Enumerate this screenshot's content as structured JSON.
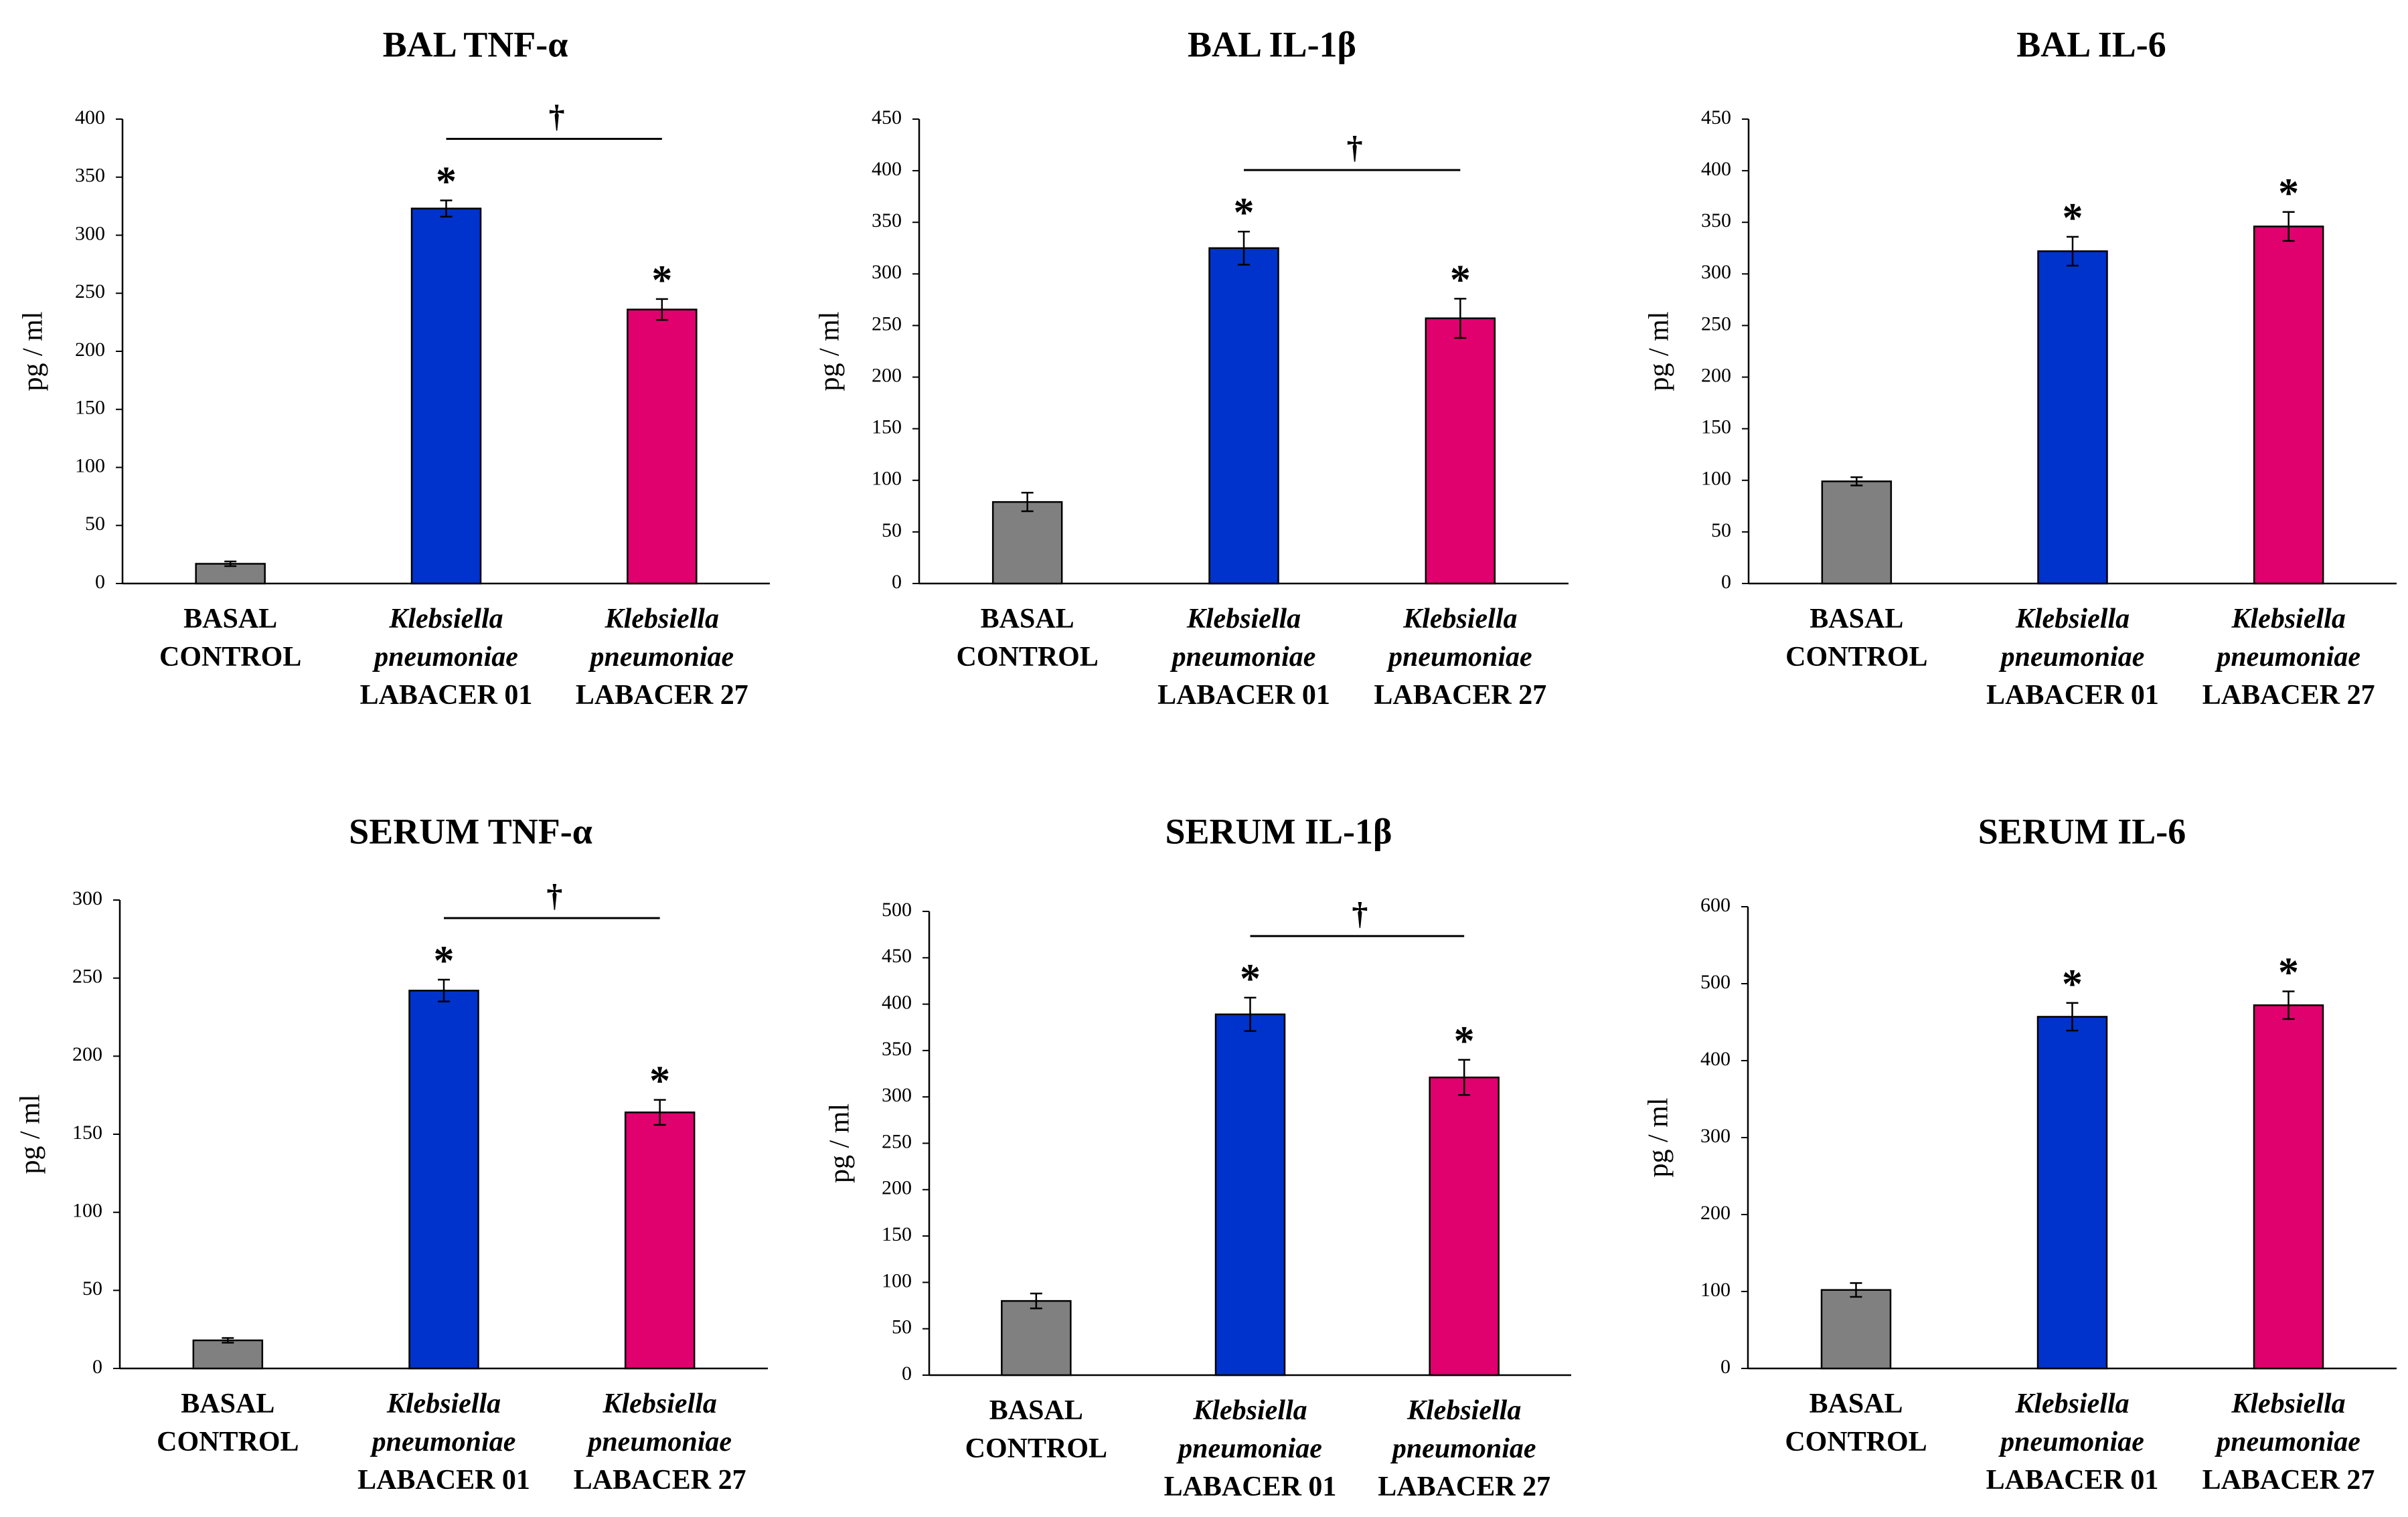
{
  "chart_data": [
    {
      "type": "bar",
      "title": "BAL TNF-α",
      "ylabel": "pg / ml",
      "ylim": [
        0,
        400
      ],
      "yticks": [
        "0",
        "50",
        "100",
        "150",
        "200",
        "250",
        "300",
        "350",
        "400"
      ],
      "categories": [
        {
          "lines": [
            "BASAL",
            "CONTROL"
          ],
          "italic": [
            false,
            false
          ]
        },
        {
          "lines": [
            "Klebsiella",
            "pneumoniae",
            "LABACER 01"
          ],
          "italic": [
            true,
            true,
            false
          ]
        },
        {
          "lines": [
            "Klebsiella",
            "pneumoniae",
            "LABACER 27"
          ],
          "italic": [
            true,
            true,
            false
          ]
        }
      ],
      "values": [
        17,
        323,
        236
      ],
      "errors": [
        2,
        7,
        9
      ],
      "colors": [
        "#808080",
        "#0033cc",
        "#e0006e"
      ],
      "significance": [
        "",
        "*",
        "*"
      ],
      "bracket": {
        "from": 1,
        "to": 2,
        "label": "†"
      }
    },
    {
      "type": "bar",
      "title": "BAL IL-1β",
      "ylabel": "pg / ml",
      "ylim": [
        0,
        450
      ],
      "yticks": [
        "0",
        "50",
        "100",
        "150",
        "200",
        "250",
        "300",
        "350",
        "400",
        "450"
      ],
      "categories": [
        {
          "lines": [
            "BASAL",
            "CONTROL"
          ],
          "italic": [
            false,
            false
          ]
        },
        {
          "lines": [
            "Klebsiella",
            "pneumoniae",
            "LABACER 01"
          ],
          "italic": [
            true,
            true,
            false
          ]
        },
        {
          "lines": [
            "Klebsiella",
            "pneumoniae",
            "LABACER 27"
          ],
          "italic": [
            true,
            true,
            false
          ]
        }
      ],
      "values": [
        79,
        325,
        257
      ],
      "errors": [
        9,
        16,
        19
      ],
      "colors": [
        "#808080",
        "#0033cc",
        "#e0006e"
      ],
      "significance": [
        "",
        "*",
        "*"
      ],
      "bracket": {
        "from": 1,
        "to": 2,
        "label": "†"
      }
    },
    {
      "type": "bar",
      "title": "BAL IL-6",
      "ylabel": "pg / ml",
      "ylim": [
        0,
        450
      ],
      "yticks": [
        "0",
        "50",
        "100",
        "150",
        "200",
        "250",
        "300",
        "350",
        "400",
        "450"
      ],
      "categories": [
        {
          "lines": [
            "BASAL",
            "CONTROL"
          ],
          "italic": [
            false,
            false
          ]
        },
        {
          "lines": [
            "Klebsiella",
            "pneumoniae",
            "LABACER 01"
          ],
          "italic": [
            true,
            true,
            false
          ]
        },
        {
          "lines": [
            "Klebsiella",
            "pneumoniae",
            "LABACER 27"
          ],
          "italic": [
            true,
            true,
            false
          ]
        }
      ],
      "values": [
        99,
        322,
        346
      ],
      "errors": [
        4,
        14,
        14
      ],
      "colors": [
        "#808080",
        "#0033cc",
        "#e0006e"
      ],
      "significance": [
        "",
        "*",
        "*"
      ],
      "bracket": null
    },
    {
      "type": "bar",
      "title": "SERUM TNF-α",
      "ylabel": "pg / ml",
      "ylim": [
        0,
        300
      ],
      "yticks": [
        "0",
        "50",
        "100",
        "150",
        "200",
        "250",
        "300"
      ],
      "categories": [
        {
          "lines": [
            "BASAL",
            "CONTROL"
          ],
          "italic": [
            false,
            false
          ]
        },
        {
          "lines": [
            "Klebsiella",
            "pneumoniae",
            "LABACER 01"
          ],
          "italic": [
            true,
            true,
            false
          ]
        },
        {
          "lines": [
            "Klebsiella",
            "pneumoniae",
            "LABACER 27"
          ],
          "italic": [
            true,
            true,
            false
          ]
        }
      ],
      "values": [
        18,
        242,
        164
      ],
      "errors": [
        1.5,
        7,
        8
      ],
      "colors": [
        "#808080",
        "#0033cc",
        "#e0006e"
      ],
      "significance": [
        "",
        "*",
        "*"
      ],
      "bracket": {
        "from": 1,
        "to": 2,
        "label": "†"
      }
    },
    {
      "type": "bar",
      "title": "SERUM IL-1β",
      "ylabel": "pg / ml",
      "ylim": [
        0,
        500
      ],
      "yticks": [
        "0",
        "50",
        "100",
        "150",
        "200",
        "250",
        "300",
        "350",
        "400",
        "450",
        "500"
      ],
      "categories": [
        {
          "lines": [
            "BASAL",
            "CONTROL"
          ],
          "italic": [
            false,
            false
          ]
        },
        {
          "lines": [
            "Klebsiella",
            "pneumoniae",
            "LABACER 01"
          ],
          "italic": [
            true,
            true,
            false
          ]
        },
        {
          "lines": [
            "Klebsiella",
            "pneumoniae",
            "LABACER 27"
          ],
          "italic": [
            true,
            true,
            false
          ]
        }
      ],
      "values": [
        80,
        389,
        321
      ],
      "errors": [
        8,
        18,
        19
      ],
      "colors": [
        "#808080",
        "#0033cc",
        "#e0006e"
      ],
      "significance": [
        "",
        "*",
        "*"
      ],
      "bracket": {
        "from": 1,
        "to": 2,
        "label": "†"
      }
    },
    {
      "type": "bar",
      "title": "SERUM IL-6",
      "ylabel": "pg / ml",
      "ylim": [
        0,
        600
      ],
      "yticks": [
        "0",
        "100",
        "200",
        "300",
        "400",
        "500",
        "600"
      ],
      "categories": [
        {
          "lines": [
            "BASAL",
            "CONTROL"
          ],
          "italic": [
            false,
            false
          ]
        },
        {
          "lines": [
            "Klebsiella",
            "pneumoniae",
            "LABACER 01"
          ],
          "italic": [
            true,
            true,
            false
          ]
        },
        {
          "lines": [
            "Klebsiella",
            "pneumoniae",
            "LABACER 27"
          ],
          "italic": [
            true,
            true,
            false
          ]
        }
      ],
      "values": [
        102,
        457,
        472
      ],
      "errors": [
        9,
        18,
        18
      ],
      "colors": [
        "#808080",
        "#0033cc",
        "#e0006e"
      ],
      "significance": [
        "",
        "*",
        "*"
      ],
      "bracket": null
    }
  ]
}
